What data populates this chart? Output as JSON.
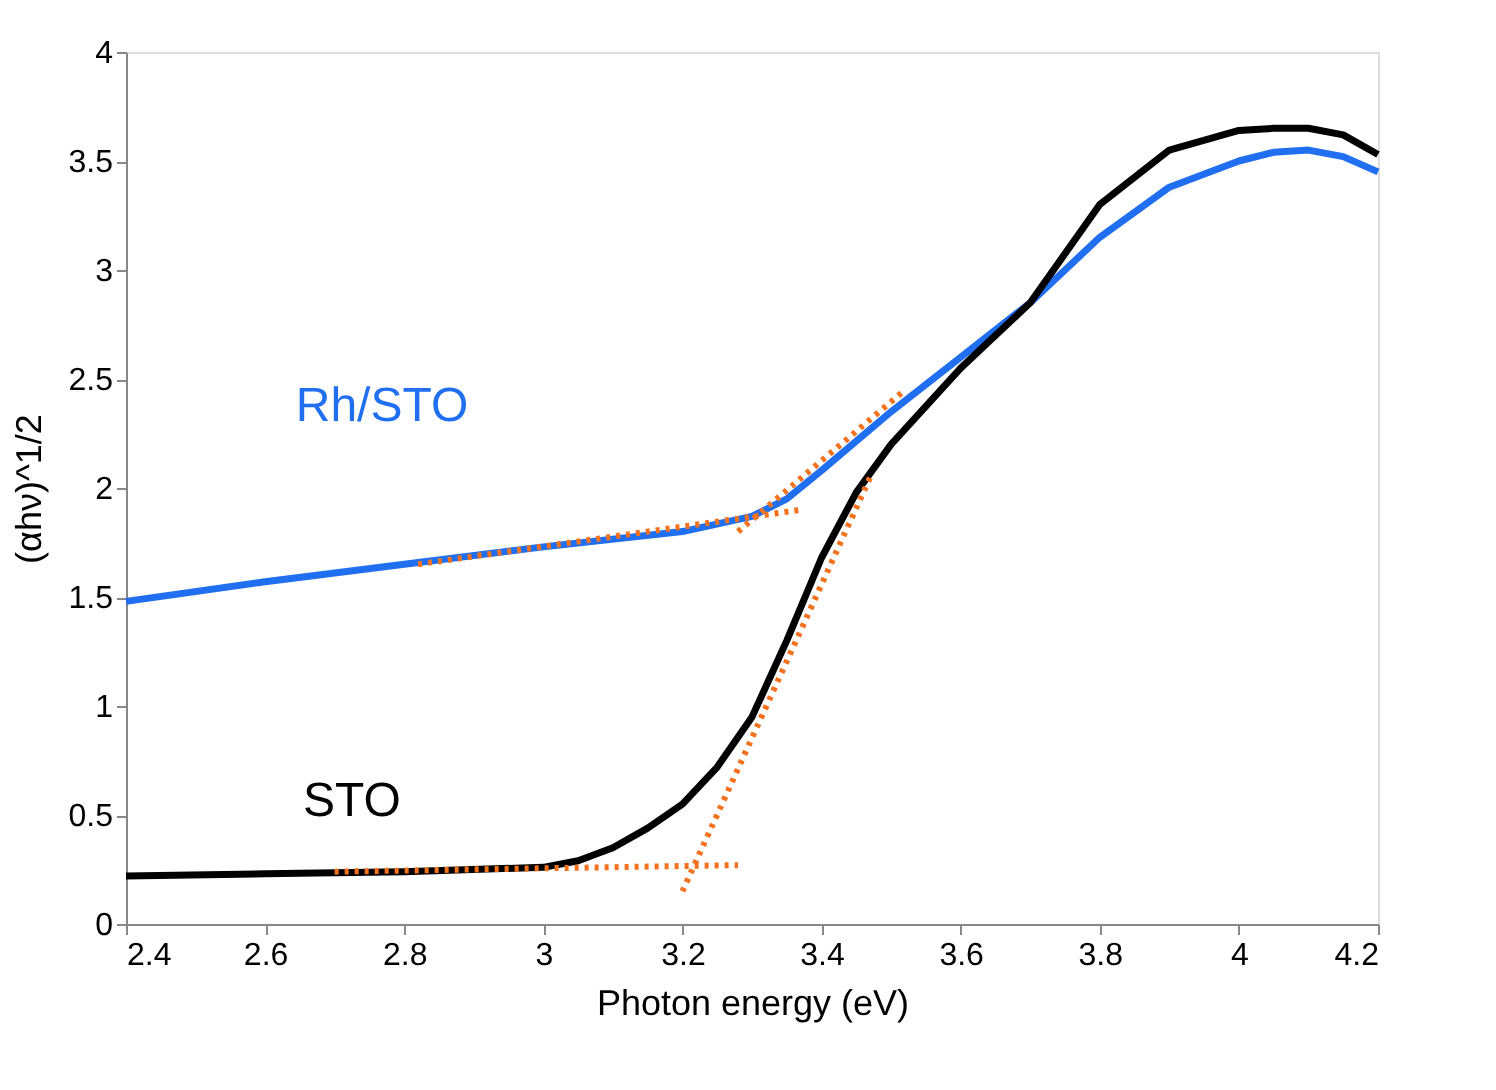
{
  "chart_data": {
    "type": "line",
    "xlabel": "Photon energy (eV)",
    "ylabel": "(αhν)^1/2",
    "xlim": [
      2.4,
      4.2
    ],
    "ylim": [
      0,
      4
    ],
    "xticks": [
      2.4,
      2.6,
      2.8,
      3,
      3.2,
      3.4,
      3.6,
      3.8,
      4,
      4.2
    ],
    "yticks": [
      0,
      0.5,
      1,
      1.5,
      2,
      2.5,
      3,
      3.5,
      4
    ],
    "grid": false,
    "line_style": "solid",
    "series": [
      {
        "name": "Rh/STO",
        "color": "#1f6ff0",
        "x": [
          2.4,
          2.6,
          2.8,
          3.0,
          3.2,
          3.3,
          3.35,
          3.4,
          3.5,
          3.6,
          3.7,
          3.8,
          3.9,
          4.0,
          4.05,
          4.1,
          4.15,
          4.2
        ],
        "values": [
          1.48,
          1.57,
          1.65,
          1.73,
          1.8,
          1.87,
          1.95,
          2.08,
          2.35,
          2.6,
          2.85,
          3.15,
          3.38,
          3.5,
          3.54,
          3.55,
          3.52,
          3.45
        ]
      },
      {
        "name": "STO",
        "color": "#000000",
        "x": [
          2.4,
          2.6,
          2.8,
          3.0,
          3.05,
          3.1,
          3.15,
          3.2,
          3.25,
          3.3,
          3.35,
          3.4,
          3.45,
          3.5,
          3.6,
          3.7,
          3.8,
          3.9,
          4.0,
          4.05,
          4.1,
          4.15,
          4.2
        ],
        "values": [
          0.22,
          0.23,
          0.24,
          0.26,
          0.29,
          0.35,
          0.44,
          0.55,
          0.72,
          0.95,
          1.3,
          1.68,
          1.98,
          2.2,
          2.55,
          2.85,
          3.3,
          3.55,
          3.64,
          3.65,
          3.65,
          3.62,
          3.53
        ]
      },
      {
        "type": "line",
        "color": "#f4721e",
        "line_style": "dotted",
        "x": [
          2.7,
          3.28
        ],
        "values": [
          0.24,
          0.27
        ]
      },
      {
        "type": "line",
        "color": "#f4721e",
        "line_style": "dotted",
        "x": [
          3.2,
          3.47
        ],
        "values": [
          0.15,
          2.05
        ]
      },
      {
        "type": "line",
        "color": "#f4721e",
        "line_style": "dotted",
        "x": [
          2.82,
          3.37
        ],
        "values": [
          1.65,
          1.9
        ]
      },
      {
        "type": "line",
        "color": "#f4721e",
        "line_style": "dotted",
        "x": [
          3.28,
          3.52
        ],
        "values": [
          1.8,
          2.45
        ]
      }
    ]
  }
}
